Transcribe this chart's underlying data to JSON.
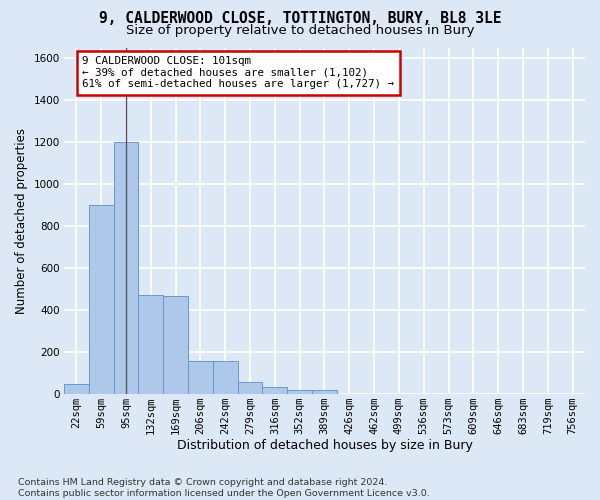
{
  "title1": "9, CALDERWOOD CLOSE, TOTTINGTON, BURY, BL8 3LE",
  "title2": "Size of property relative to detached houses in Bury",
  "xlabel": "Distribution of detached houses by size in Bury",
  "ylabel": "Number of detached properties",
  "footnote": "Contains HM Land Registry data © Crown copyright and database right 2024.\nContains public sector information licensed under the Open Government Licence v3.0.",
  "bin_labels": [
    "22sqm",
    "59sqm",
    "95sqm",
    "132sqm",
    "169sqm",
    "206sqm",
    "242sqm",
    "279sqm",
    "316sqm",
    "352sqm",
    "389sqm",
    "426sqm",
    "462sqm",
    "499sqm",
    "536sqm",
    "573sqm",
    "609sqm",
    "646sqm",
    "683sqm",
    "719sqm",
    "756sqm"
  ],
  "bar_heights": [
    45,
    900,
    1200,
    470,
    465,
    155,
    155,
    55,
    30,
    18,
    18,
    0,
    0,
    0,
    0,
    0,
    0,
    0,
    0,
    0,
    0
  ],
  "bar_color": "#adc8e8",
  "bar_edge_color": "#6699cc",
  "vline_x_index": 2,
  "vline_color": "#555555",
  "annotation_text": "9 CALDERWOOD CLOSE: 101sqm\n← 39% of detached houses are smaller (1,102)\n61% of semi-detached houses are larger (1,727) →",
  "annotation_box_facecolor": "#ffffff",
  "annotation_box_edgecolor": "#cc0000",
  "ylim_max": 1650,
  "yticks": [
    0,
    200,
    400,
    600,
    800,
    1000,
    1200,
    1400,
    1600
  ],
  "background_color": "#dce8f5",
  "grid_color": "#ffffff",
  "title1_fontsize": 10.5,
  "title2_fontsize": 9.5,
  "ylabel_fontsize": 8.5,
  "xlabel_fontsize": 9.0,
  "tick_fontsize": 7.5,
  "footnote_fontsize": 6.8,
  "annotation_fontsize": 7.8
}
